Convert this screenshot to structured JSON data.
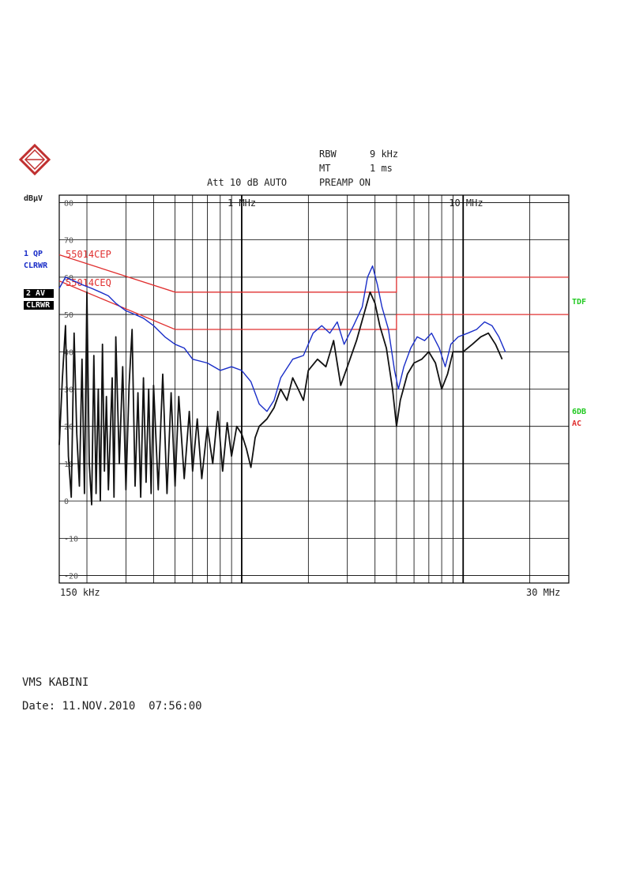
{
  "header": {
    "rbw_label": "RBW",
    "rbw_value": "9 kHz",
    "mt_label": "MT",
    "mt_value": "1 ms",
    "att_line": "Att 10 dB AUTO",
    "preamp": "PREAMP ON"
  },
  "trace_labels": {
    "trace1_a": "1 QP",
    "trace1_b": "CLRWR",
    "trace2_a": "2 AV",
    "trace2_b": "CLRWR"
  },
  "right_labels": {
    "tdf": "TDF",
    "sixdb": "6DB",
    "ac": "AC"
  },
  "footer": {
    "title": "VMS KABINI",
    "date": "Date: 11.NOV.2010  07:56:00"
  },
  "colors": {
    "qp_trace": "#1a2ec8",
    "av_trace": "#111111",
    "limit": "#e03030",
    "tdf": "#22c922",
    "sixdb": "#22c922",
    "ac": "#e03030",
    "logo": "#c03030"
  },
  "logo_icon": "rohde-schwarz-logo",
  "chart_data": {
    "type": "line",
    "ylabel": "dBµV",
    "x_scale": "log",
    "xlim": [
      0.15,
      30
    ],
    "ylim": [
      -22,
      82
    ],
    "y_ticks": [
      80,
      70,
      60,
      50,
      40,
      30,
      20,
      10,
      0,
      -10,
      -20
    ],
    "x_tick_labels": [
      {
        "f": 1,
        "label": "1 MHz"
      },
      {
        "f": 10,
        "label": "10 MHz"
      }
    ],
    "x_start_label": "150 kHz",
    "x_stop_label": "30 MHz",
    "limit_lines": [
      {
        "name": "55014CEP",
        "points": [
          [
            0.15,
            66
          ],
          [
            0.5,
            56
          ],
          [
            5,
            56
          ],
          [
            5,
            60
          ],
          [
            30,
            60
          ]
        ]
      },
      {
        "name": "55014CEQ",
        "points": [
          [
            0.15,
            59
          ],
          [
            0.5,
            46
          ],
          [
            5,
            46
          ],
          [
            5,
            50
          ],
          [
            30,
            50
          ]
        ]
      }
    ],
    "series": [
      {
        "name": "1 QP",
        "points": [
          [
            0.15,
            57
          ],
          [
            0.16,
            60
          ],
          [
            0.175,
            59
          ],
          [
            0.19,
            58
          ],
          [
            0.21,
            57
          ],
          [
            0.23,
            56
          ],
          [
            0.25,
            55
          ],
          [
            0.27,
            53
          ],
          [
            0.3,
            51
          ],
          [
            0.33,
            50
          ],
          [
            0.36,
            49
          ],
          [
            0.4,
            47
          ],
          [
            0.45,
            44
          ],
          [
            0.5,
            42
          ],
          [
            0.55,
            41
          ],
          [
            0.6,
            38
          ],
          [
            0.7,
            37
          ],
          [
            0.8,
            35
          ],
          [
            0.9,
            36
          ],
          [
            1.0,
            35
          ],
          [
            1.1,
            32
          ],
          [
            1.2,
            26
          ],
          [
            1.3,
            24
          ],
          [
            1.4,
            27
          ],
          [
            1.5,
            33
          ],
          [
            1.7,
            38
          ],
          [
            1.9,
            39
          ],
          [
            2.1,
            45
          ],
          [
            2.3,
            47
          ],
          [
            2.5,
            45
          ],
          [
            2.7,
            48
          ],
          [
            2.9,
            42
          ],
          [
            3.2,
            47
          ],
          [
            3.5,
            52
          ],
          [
            3.7,
            60
          ],
          [
            3.9,
            63
          ],
          [
            4.1,
            58
          ],
          [
            4.3,
            52
          ],
          [
            4.6,
            46
          ],
          [
            4.9,
            35
          ],
          [
            5.1,
            30
          ],
          [
            5.4,
            36
          ],
          [
            5.8,
            41
          ],
          [
            6.2,
            44
          ],
          [
            6.7,
            43
          ],
          [
            7.2,
            45
          ],
          [
            7.8,
            41
          ],
          [
            8.3,
            36
          ],
          [
            8.8,
            42
          ],
          [
            9.5,
            44
          ],
          [
            10.5,
            45
          ],
          [
            11.5,
            46
          ],
          [
            12.5,
            48
          ],
          [
            13.5,
            47
          ],
          [
            14.5,
            44
          ],
          [
            15.5,
            40
          ]
        ]
      },
      {
        "name": "2 AV",
        "points": [
          [
            0.15,
            15
          ],
          [
            0.155,
            33
          ],
          [
            0.16,
            47
          ],
          [
            0.165,
            12
          ],
          [
            0.17,
            1
          ],
          [
            0.175,
            45
          ],
          [
            0.18,
            18
          ],
          [
            0.185,
            4
          ],
          [
            0.19,
            38
          ],
          [
            0.195,
            2
          ],
          [
            0.2,
            56
          ],
          [
            0.205,
            10
          ],
          [
            0.21,
            -1
          ],
          [
            0.215,
            39
          ],
          [
            0.22,
            2
          ],
          [
            0.225,
            30
          ],
          [
            0.23,
            0
          ],
          [
            0.235,
            42
          ],
          [
            0.24,
            8
          ],
          [
            0.245,
            28
          ],
          [
            0.25,
            3
          ],
          [
            0.26,
            33
          ],
          [
            0.265,
            1
          ],
          [
            0.27,
            44
          ],
          [
            0.28,
            10
          ],
          [
            0.29,
            36
          ],
          [
            0.3,
            3
          ],
          [
            0.31,
            31
          ],
          [
            0.32,
            46
          ],
          [
            0.33,
            4
          ],
          [
            0.34,
            29
          ],
          [
            0.35,
            1
          ],
          [
            0.36,
            33
          ],
          [
            0.37,
            5
          ],
          [
            0.38,
            30
          ],
          [
            0.39,
            2
          ],
          [
            0.4,
            31
          ],
          [
            0.42,
            3
          ],
          [
            0.44,
            34
          ],
          [
            0.46,
            2
          ],
          [
            0.48,
            29
          ],
          [
            0.5,
            4
          ],
          [
            0.52,
            28
          ],
          [
            0.55,
            6
          ],
          [
            0.58,
            24
          ],
          [
            0.6,
            8
          ],
          [
            0.63,
            22
          ],
          [
            0.66,
            6
          ],
          [
            0.7,
            20
          ],
          [
            0.74,
            10
          ],
          [
            0.78,
            24
          ],
          [
            0.82,
            8
          ],
          [
            0.86,
            21
          ],
          [
            0.9,
            12
          ],
          [
            0.95,
            20
          ],
          [
            1.0,
            18
          ],
          [
            1.05,
            14
          ],
          [
            1.1,
            9
          ],
          [
            1.15,
            17
          ],
          [
            1.2,
            20
          ],
          [
            1.3,
            22
          ],
          [
            1.4,
            25
          ],
          [
            1.5,
            30
          ],
          [
            1.6,
            27
          ],
          [
            1.7,
            33
          ],
          [
            1.8,
            30
          ],
          [
            1.9,
            27
          ],
          [
            2.0,
            35
          ],
          [
            2.2,
            38
          ],
          [
            2.4,
            36
          ],
          [
            2.6,
            43
          ],
          [
            2.8,
            31
          ],
          [
            3.0,
            36
          ],
          [
            3.3,
            43
          ],
          [
            3.6,
            51
          ],
          [
            3.8,
            56
          ],
          [
            4.0,
            53
          ],
          [
            4.2,
            47
          ],
          [
            4.5,
            41
          ],
          [
            4.8,
            30
          ],
          [
            5.0,
            20
          ],
          [
            5.2,
            27
          ],
          [
            5.6,
            34
          ],
          [
            6.0,
            37
          ],
          [
            6.5,
            38
          ],
          [
            7.0,
            40
          ],
          [
            7.5,
            37
          ],
          [
            8.0,
            30
          ],
          [
            8.5,
            34
          ],
          [
            9.0,
            40
          ],
          [
            10.0,
            40
          ],
          [
            11.0,
            42
          ],
          [
            12.0,
            44
          ],
          [
            13.0,
            45
          ],
          [
            14.0,
            42
          ],
          [
            15.0,
            38
          ]
        ]
      }
    ]
  }
}
